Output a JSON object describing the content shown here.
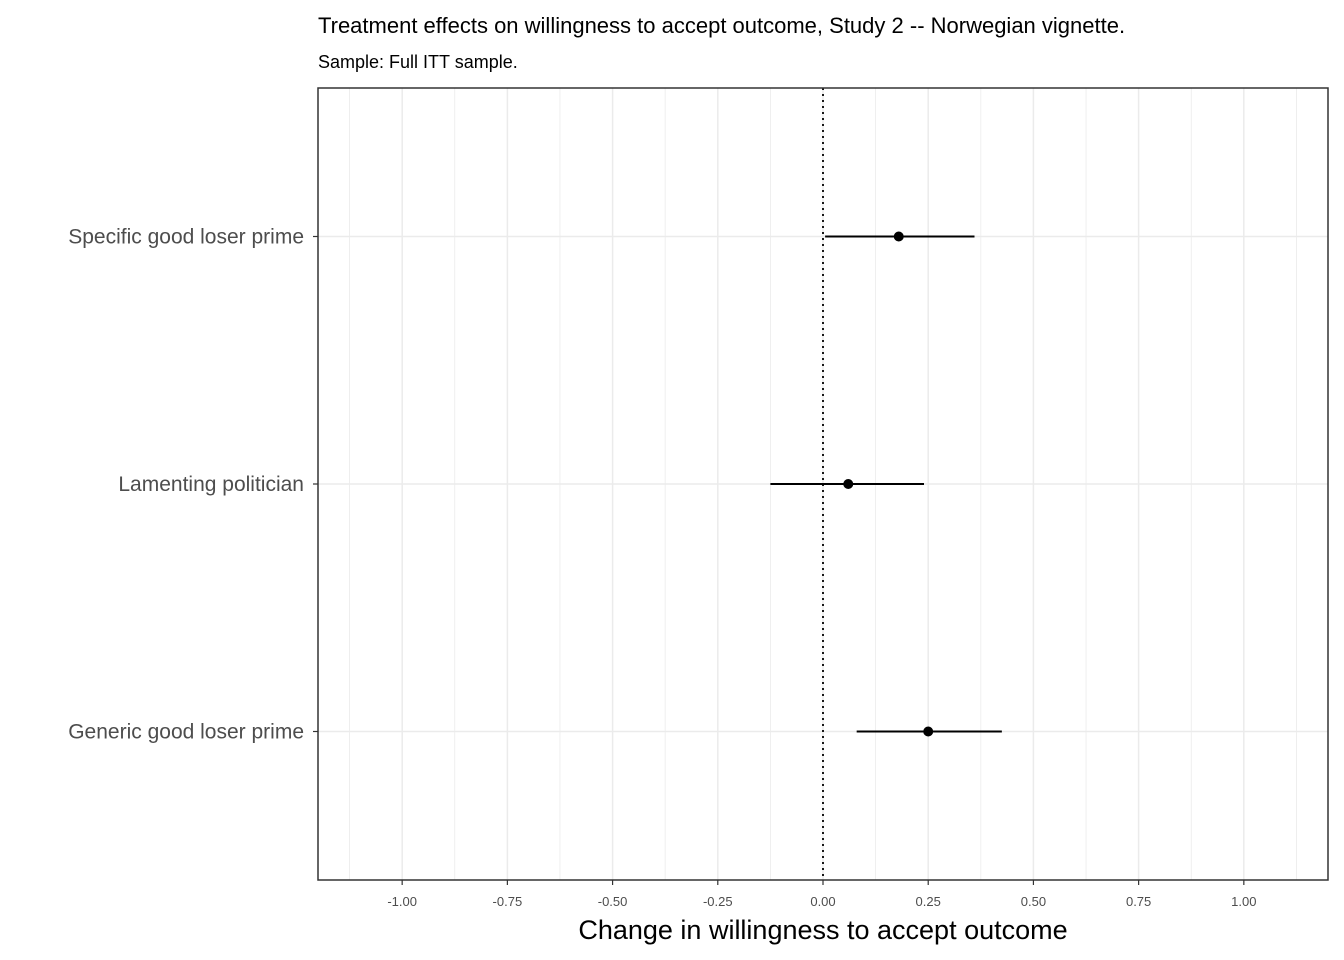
{
  "chart_data": {
    "type": "scatter",
    "subtype": "coefficient-plot",
    "title": "Treatment effects on willingness to accept outcome, Study 2 -- Norwegian vignette.",
    "subtitle": "Sample: Full ITT sample.",
    "xlabel": "Change in willingness to accept outcome",
    "ylabel": "",
    "xlim": [
      -1.2,
      1.2
    ],
    "x_ticks": [
      -1.0,
      -0.75,
      -0.5,
      -0.25,
      0.0,
      0.25,
      0.5,
      0.75,
      1.0
    ],
    "x_tick_labels": [
      "-1.00",
      "-0.75",
      "-0.50",
      "-0.25",
      "0.00",
      "0.25",
      "0.50",
      "0.75",
      "1.00"
    ],
    "categories": [
      "Specific good loser prime",
      "Lamenting politician",
      "Generic good loser prime"
    ],
    "estimates": [
      0.18,
      0.06,
      0.25
    ],
    "ci_lower": [
      0.005,
      -0.125,
      0.08
    ],
    "ci_upper": [
      0.36,
      0.24,
      0.425
    ],
    "reference_line": {
      "x": 0,
      "style": "dotted"
    },
    "grid": true,
    "legend": "none",
    "colors": {
      "point": "#000000",
      "errorbar": "#000000",
      "grid": "#ebebeb",
      "panel_border": "#333333",
      "tick_text": "#4d4d4d"
    }
  }
}
